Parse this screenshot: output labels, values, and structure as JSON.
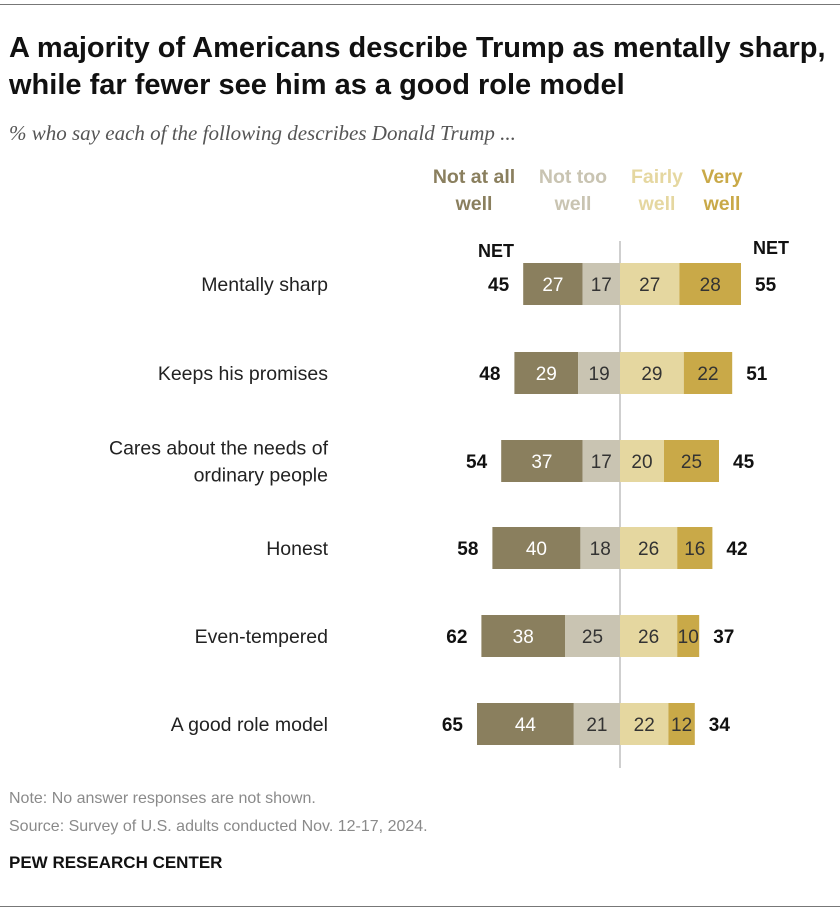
{
  "title": "A majority of Americans describe Trump as mentally sharp, while far fewer see him as a good role model",
  "subtitle": "% who say each of the following describes Donald Trump ...",
  "legend": [
    {
      "label": "Not at all\nwell",
      "color": "#8a7f5e"
    },
    {
      "label": "Not too\nwell",
      "color": "#c9c4b2"
    },
    {
      "label": "Fairly\nwell",
      "color": "#e5d7a0"
    },
    {
      "label": "Very\nwell",
      "color": "#c9a948"
    }
  ],
  "net_label": "NET",
  "note": "Note: No answer responses are not shown.",
  "source": "Source: Survey of U.S. adults conducted Nov. 12-17, 2024.",
  "brand": "PEW RESEARCH CENTER",
  "colors": {
    "not_at_all": "#8a7f5e",
    "not_too": "#c9c4b2",
    "fairly": "#e5d7a0",
    "very": "#c9a948",
    "legend_text": [
      "#8a7f5e",
      "#c9c4b2",
      "#e5d7a0",
      "#c9a948"
    ]
  },
  "chart_data": {
    "type": "bar",
    "orientation": "horizontal-diverging",
    "categories": [
      "Mentally sharp",
      "Keeps his promises",
      "Cares about the needs of ordinary people",
      "Honest",
      "Even-tempered",
      "A good role model"
    ],
    "category_lines": [
      [
        "Mentally sharp"
      ],
      [
        "Keeps his promises"
      ],
      [
        "Cares about the needs of",
        "ordinary people"
      ],
      [
        "Honest"
      ],
      [
        "Even-tempered"
      ],
      [
        "A good role model"
      ]
    ],
    "series": [
      {
        "name": "Not at all well",
        "values": [
          27,
          29,
          37,
          40,
          38,
          44
        ]
      },
      {
        "name": "Not too well",
        "values": [
          17,
          19,
          17,
          18,
          25,
          21
        ]
      },
      {
        "name": "Fairly well",
        "values": [
          27,
          29,
          20,
          26,
          26,
          22
        ]
      },
      {
        "name": "Very well",
        "values": [
          28,
          22,
          25,
          16,
          10,
          12
        ]
      }
    ],
    "net_negative": [
      45,
      48,
      54,
      58,
      62,
      65
    ],
    "net_positive": [
      55,
      51,
      45,
      42,
      37,
      34
    ]
  }
}
